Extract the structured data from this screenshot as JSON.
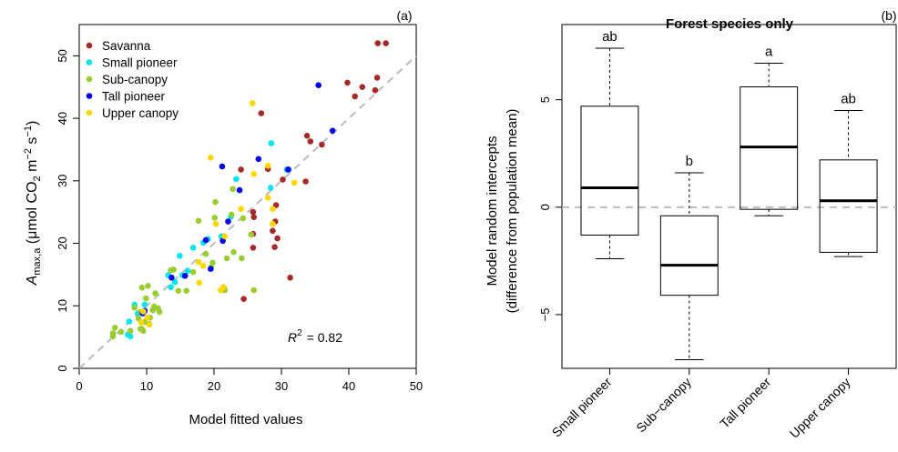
{
  "chart_data": [
    {
      "type": "scatter",
      "panel_label": "(a)",
      "xlabel": "Model fitted values",
      "ylabel": {
        "main": "A",
        "sub": "max,a",
        "rest": " (μmol CO",
        "sub2": "2",
        "unit": " m",
        "sup1": "−2",
        "unit2": " s",
        "sup2": "−1",
        "close": ")"
      },
      "xlim": [
        0,
        50
      ],
      "ylim": [
        0,
        55
      ],
      "xticks": [
        "0",
        "10",
        "20",
        "30",
        "40",
        "50"
      ],
      "yticks": [
        "0",
        "10",
        "20",
        "30",
        "40",
        "50"
      ],
      "annotation": {
        "r_label": "R",
        "r_sup": "2",
        "value": "= 0.82"
      },
      "reference_line": "1:1 dashed",
      "series": [
        {
          "name": "Savanna",
          "color": "#A52A2A",
          "points": [
            [
              44.3,
              52.0
            ],
            [
              45.5,
              52.0
            ],
            [
              44.2,
              46.5
            ],
            [
              39.8,
              45.7
            ],
            [
              42.0,
              45.0
            ],
            [
              43.9,
              44.5
            ],
            [
              40.9,
              43.5
            ],
            [
              33.8,
              37.2
            ],
            [
              34.3,
              36.3
            ],
            [
              36.0,
              35.8
            ],
            [
              27.0,
              40.8
            ],
            [
              28.0,
              31.9
            ],
            [
              30.2,
              30.2
            ],
            [
              33.6,
              29.9
            ],
            [
              24.0,
              31.8
            ],
            [
              29.2,
              26.1
            ],
            [
              25.8,
              25.0
            ],
            [
              25.9,
              24.2
            ],
            [
              29.1,
              23.5
            ],
            [
              28.7,
              22.0
            ],
            [
              25.8,
              21.5
            ],
            [
              29.4,
              20.8
            ],
            [
              29.0,
              19.4
            ],
            [
              25.8,
              19.3
            ],
            [
              31.3,
              14.5
            ],
            [
              24.4,
              11.1
            ]
          ]
        },
        {
          "name": "Small pioneer",
          "color": "#00E5EE",
          "points": [
            [
              28.5,
              36.0
            ],
            [
              30.8,
              31.8
            ],
            [
              31.1,
              31.8
            ],
            [
              28.4,
              28.9
            ],
            [
              23.3,
              30.3
            ],
            [
              22.5,
              24.3
            ],
            [
              21.1,
              21.1
            ],
            [
              18.4,
              20.1
            ],
            [
              19.1,
              20.7
            ],
            [
              16.9,
              19.3
            ],
            [
              14.9,
              18.0
            ],
            [
              16.1,
              15.6
            ],
            [
              15.3,
              14.9
            ],
            [
              14.2,
              13.8
            ],
            [
              13.6,
              13.0
            ],
            [
              8.2,
              10.2
            ],
            [
              9.7,
              10.2
            ],
            [
              7.4,
              7.5
            ],
            [
              7.2,
              5.4
            ],
            [
              7.6,
              5.1
            ],
            [
              8.7,
              8.8
            ],
            [
              13.2,
              14.9
            ]
          ]
        },
        {
          "name": "Sub-canopy",
          "color": "#9ACD32",
          "points": [
            [
              22.8,
              28.7
            ],
            [
              22.6,
              24.6
            ],
            [
              20.2,
              26.6
            ],
            [
              20.1,
              24.1
            ],
            [
              24.3,
              24.0
            ],
            [
              17.7,
              23.6
            ],
            [
              25.5,
              21.4
            ],
            [
              22.9,
              18.6
            ],
            [
              18.8,
              18.3
            ],
            [
              24.1,
              17.6
            ],
            [
              21.9,
              17.6
            ],
            [
              19.6,
              16.2
            ],
            [
              19.8,
              16.9
            ],
            [
              16.9,
              15.4
            ],
            [
              14.0,
              15.8
            ],
            [
              13.6,
              15.7
            ],
            [
              25.9,
              12.5
            ],
            [
              15.9,
              12.4
            ],
            [
              21.6,
              12.5
            ],
            [
              21.5,
              12.9
            ],
            [
              14.7,
              12.4
            ],
            [
              9.3,
              12.9
            ],
            [
              10.2,
              13.2
            ],
            [
              11.3,
              12.0
            ],
            [
              9.9,
              11.2
            ],
            [
              11.1,
              9.9
            ],
            [
              11.7,
              9.6
            ],
            [
              11.9,
              9.0
            ],
            [
              10.9,
              9.3
            ],
            [
              8.2,
              9.7
            ],
            [
              9.1,
              9.0
            ],
            [
              8.8,
              8.0
            ],
            [
              10.5,
              8.1
            ],
            [
              9.7,
              7.4
            ],
            [
              10.4,
              7.1
            ],
            [
              9.5,
              6.0
            ],
            [
              9.3,
              6.3
            ],
            [
              9.1,
              6.3
            ],
            [
              7.6,
              6.0
            ],
            [
              6.2,
              5.8
            ],
            [
              5.3,
              6.5
            ],
            [
              5.0,
              5.6
            ],
            [
              5.0,
              5.1
            ]
          ]
        },
        {
          "name": "Tall pioneer",
          "color": "#0000EE",
          "points": [
            [
              35.5,
              45.3
            ],
            [
              37.6,
              38.0
            ],
            [
              31.0,
              31.8
            ],
            [
              26.6,
              33.5
            ],
            [
              21.2,
              32.3
            ],
            [
              23.8,
              28.5
            ],
            [
              22.1,
              23.5
            ],
            [
              21.3,
              20.4
            ],
            [
              18.8,
              20.5
            ],
            [
              19.5,
              15.9
            ],
            [
              15.7,
              14.8
            ],
            [
              13.7,
              14.5
            ],
            [
              9.7,
              9.2
            ],
            [
              9.4,
              8.8
            ]
          ]
        },
        {
          "name": "Upper canopy",
          "color": "#FFD700",
          "points": [
            [
              25.7,
              42.4
            ],
            [
              19.5,
              33.7
            ],
            [
              28.0,
              32.4
            ],
            [
              25.9,
              31.1
            ],
            [
              31.9,
              29.7
            ],
            [
              28.0,
              27.3
            ],
            [
              28.7,
              25.5
            ],
            [
              24.0,
              25.5
            ],
            [
              20.3,
              23.1
            ],
            [
              28.7,
              23.1
            ],
            [
              21.6,
              21.1
            ],
            [
              17.7,
              17.0
            ],
            [
              18.4,
              16.4
            ],
            [
              21.4,
              13.0
            ],
            [
              17.8,
              13.7
            ],
            [
              21.0,
              12.5
            ],
            [
              9.2,
              7.3
            ],
            [
              10.1,
              8.1
            ],
            [
              10.4,
              7.0
            ],
            [
              9.5,
              9.1
            ]
          ]
        }
      ]
    },
    {
      "type": "box",
      "panel_label": "(b)",
      "title": "Forest species only",
      "ylabel_line1": "Model random intercepts",
      "ylabel_line2": "(difference from population mean)",
      "ylim": [
        -7.5,
        8.5
      ],
      "yticks": [
        "−5",
        "0",
        "5"
      ],
      "reference_line": 0,
      "categories": [
        "Small pioneer",
        "Sub−canopy",
        "Tall pioneer",
        "Upper canopy"
      ],
      "boxes": [
        {
          "whisker_low": -2.4,
          "q1": -1.3,
          "median": 0.9,
          "q3": 4.7,
          "whisker_high": 7.4,
          "letter": "ab"
        },
        {
          "whisker_low": -7.1,
          "q1": -4.1,
          "median": -2.7,
          "q3": -0.4,
          "whisker_high": 1.6,
          "letter": "b"
        },
        {
          "whisker_low": -0.4,
          "q1": -0.1,
          "median": 2.8,
          "q3": 5.6,
          "whisker_high": 6.7,
          "letter": "a"
        },
        {
          "whisker_low": -2.3,
          "q1": -2.1,
          "median": 0.3,
          "q3": 2.2,
          "whisker_high": 4.5,
          "letter": "ab"
        }
      ]
    }
  ]
}
